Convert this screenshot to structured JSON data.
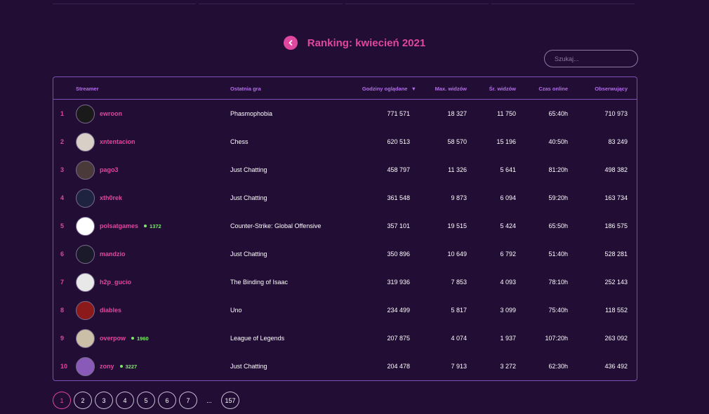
{
  "header": {
    "title": "Ranking: kwiecień 2021"
  },
  "search": {
    "placeholder": "Szukaj..."
  },
  "table": {
    "columns": {
      "streamer": "Streamer",
      "last_game": "Ostatnia gra",
      "hours_watched": "Godziny oglądane",
      "max_viewers": "Max. widzów",
      "avg_viewers": "Śr. widzów",
      "time_online": "Czas online",
      "followers": "Obserwujący"
    },
    "sort_indicator": "▼",
    "rows": [
      {
        "rank": "1",
        "name": "ewroon",
        "live": "",
        "game": "Phasmophobia",
        "hours": "771 571",
        "max": "18 327",
        "avg": "11 750",
        "time": "65:40h",
        "followers": "710 973",
        "avatar_color": "#1a1a1a"
      },
      {
        "rank": "2",
        "name": "xntentacion",
        "live": "",
        "game": "Chess",
        "hours": "620 513",
        "max": "58 570",
        "avg": "15 196",
        "time": "40:50h",
        "followers": "83 249",
        "avatar_color": "#d8cfc6"
      },
      {
        "rank": "3",
        "name": "pago3",
        "live": "",
        "game": "Just Chatting",
        "hours": "458 797",
        "max": "11 326",
        "avg": "5 641",
        "time": "81:20h",
        "followers": "498 382",
        "avatar_color": "#4a3a3a"
      },
      {
        "rank": "4",
        "name": "xth0rek",
        "live": "",
        "game": "Just Chatting",
        "hours": "361 548",
        "max": "9 873",
        "avg": "6 094",
        "time": "59:20h",
        "followers": "163 734",
        "avatar_color": "#1e2340"
      },
      {
        "rank": "5",
        "name": "polsatgames",
        "live": "1372",
        "game": "Counter-Strike: Global Offensive",
        "hours": "357 101",
        "max": "19 515",
        "avg": "5 424",
        "time": "65:50h",
        "followers": "186 575",
        "avatar_color": "#ffffff"
      },
      {
        "rank": "6",
        "name": "mandzio",
        "live": "",
        "game": "Just Chatting",
        "hours": "350 896",
        "max": "10 649",
        "avg": "6 792",
        "time": "51:40h",
        "followers": "528 281",
        "avatar_color": "#1a1a2a"
      },
      {
        "rank": "7",
        "name": "h2p_gucio",
        "live": "",
        "game": "The Binding of Isaac",
        "hours": "319 936",
        "max": "7 853",
        "avg": "4 093",
        "time": "78:10h",
        "followers": "252 143",
        "avatar_color": "#e8e8e8"
      },
      {
        "rank": "8",
        "name": "diables",
        "live": "",
        "game": "Uno",
        "hours": "234 499",
        "max": "5 817",
        "avg": "3 099",
        "time": "75:40h",
        "followers": "118 552",
        "avatar_color": "#8c1a1a"
      },
      {
        "rank": "9",
        "name": "overpow",
        "live": "1960",
        "game": "League of Legends",
        "hours": "207 875",
        "max": "4 074",
        "avg": "1 937",
        "time": "107:20h",
        "followers": "263 092",
        "avatar_color": "#cbbfa8"
      },
      {
        "rank": "10",
        "name": "zony",
        "live": "3227",
        "game": "Just Chatting",
        "hours": "204 478",
        "max": "7 913",
        "avg": "3 272",
        "time": "62:30h",
        "followers": "436 492",
        "avatar_color": "#8a5ab8"
      }
    ]
  },
  "pagination": {
    "pages": [
      "1",
      "2",
      "3",
      "4",
      "5",
      "6",
      "7"
    ],
    "active": "1",
    "ellipsis": "...",
    "last": "157"
  },
  "colors": {
    "accent": "#e0479e",
    "background": "#220d35",
    "border": "#7e4fb3",
    "live": "#7ee86b"
  }
}
